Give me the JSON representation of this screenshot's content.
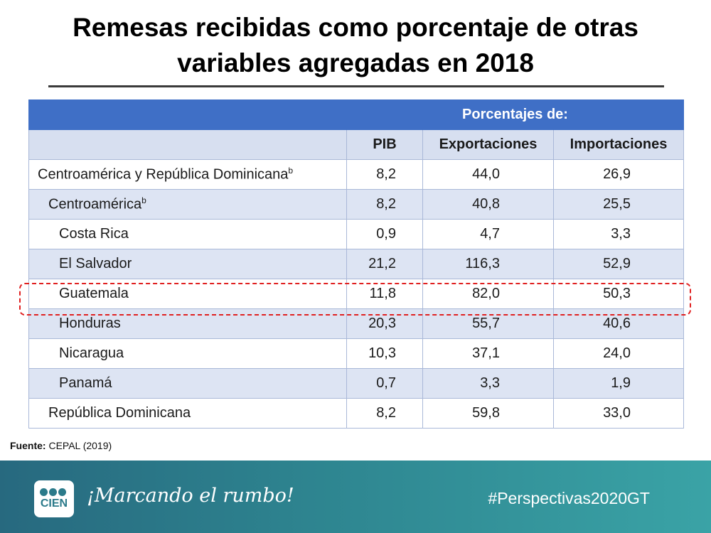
{
  "title": {
    "line1": "Remesas recibidas como porcentaje de otras",
    "line2": "variables agregadas en 2018"
  },
  "table": {
    "group_header": "Porcentajes de:",
    "columns": [
      "PIB",
      "Exportaciones",
      "Importaciones"
    ],
    "rows": [
      {
        "name": "Centroamérica y República Dominicana",
        "sup": "b",
        "pib": "8,2",
        "exp": "44,0",
        "imp": "26,9"
      },
      {
        "name": "Centroamérica",
        "sup": "b",
        "pib": "8,2",
        "exp": "40,8",
        "imp": "25,5"
      },
      {
        "name": "Costa Rica",
        "pib": "0,9",
        "exp": "4,7",
        "imp": "3,3"
      },
      {
        "name": "El Salvador",
        "pib": "21,2",
        "exp": "116,3",
        "imp": "52,9"
      },
      {
        "name": "Guatemala",
        "pib": "11,8",
        "exp": "82,0",
        "imp": "50,3"
      },
      {
        "name": "Honduras",
        "pib": "20,3",
        "exp": "55,7",
        "imp": "40,6"
      },
      {
        "name": "Nicaragua",
        "pib": "10,3",
        "exp": "37,1",
        "imp": "24,0"
      },
      {
        "name": "Panamá",
        "pib": "0,7",
        "exp": "3,3",
        "imp": "1,9"
      },
      {
        "name": "República Dominicana",
        "pib": "8,2",
        "exp": "59,8",
        "imp": "33,0"
      }
    ]
  },
  "source": {
    "label": "Fuente:",
    "text": " CEPAL (2019)"
  },
  "footer": {
    "logo_text": "CIEN",
    "slogan": "¡Marcando el rumbo!",
    "hashtag": "#Perspectivas2020GT"
  },
  "colors": {
    "header_band": "#3f6fc6",
    "row_alt": "#dde4f3",
    "highlight": "#e02020",
    "footer_start": "#27697f",
    "footer_end": "#3aa3a6"
  }
}
